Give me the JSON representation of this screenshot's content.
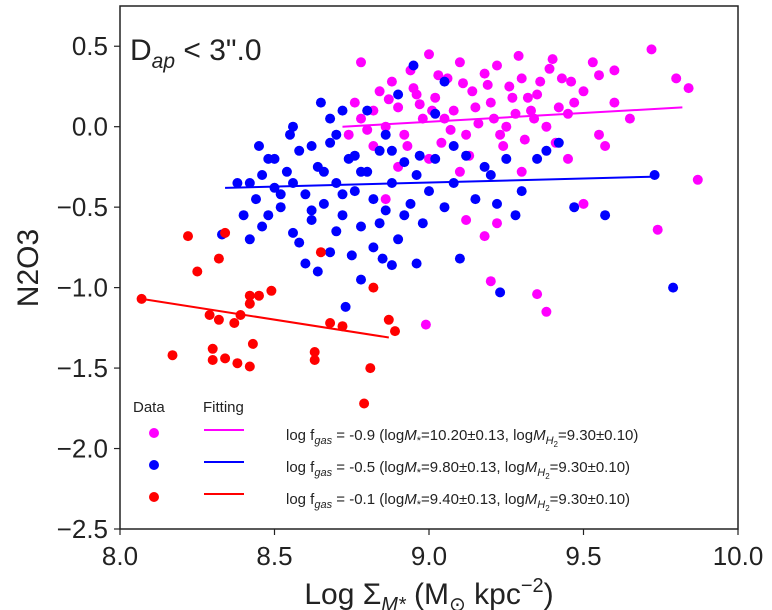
{
  "chart_data": {
    "type": "scatter",
    "annotation": {
      "label": "D",
      "sub": "ap",
      "suffix": " < 3\".0"
    },
    "xlabel": {
      "prefix": "Log Σ",
      "sub": "M*",
      "mid": " (M",
      "sun": "⊙",
      "unit": " kpc",
      "sup": "−2",
      "end": ")"
    },
    "ylabel": "N2O3",
    "xlim": [
      8.0,
      10.0
    ],
    "ylim": [
      -2.5,
      0.75
    ],
    "xticks": [
      8.0,
      8.5,
      9.0,
      9.5,
      10.0
    ],
    "xtick_labels": [
      "8.0",
      "8.5",
      "9.0",
      "9.5",
      "10.0"
    ],
    "yticks": [
      -2.5,
      -2.0,
      -1.5,
      -1.0,
      -0.5,
      0.0,
      0.5
    ],
    "ytick_labels": [
      "−2.5",
      "−2.0",
      "−1.5",
      "−1.0",
      "−0.5",
      "0.0",
      "0.5"
    ],
    "grid": false,
    "legend": {
      "position": "lower-left",
      "data_header": "Data",
      "fit_header": "Fitting",
      "prefix": "log f",
      "sub": "gas",
      "ms_text": "=",
      "mh_text": "="
    },
    "series": [
      {
        "name": "magenta",
        "color": "#ff00ff",
        "label": " = -0.9 (logM*=10.20±0.13, logMH2=9.30±0.10)",
        "fgas": " = -0.9 (log",
        "mstar": "10.20±0.13",
        "mh2": "9.30±0.10",
        "fit": {
          "x": [
            8.72,
            9.82
          ],
          "y": [
            0.0,
            0.12
          ]
        },
        "points": [
          [
            8.76,
            0.15
          ],
          [
            8.78,
            0.05
          ],
          [
            8.8,
            -0.02
          ],
          [
            8.82,
            0.1
          ],
          [
            8.84,
            0.22
          ],
          [
            8.86,
            0.0
          ],
          [
            8.88,
            0.28
          ],
          [
            8.9,
            0.12
          ],
          [
            8.92,
            -0.05
          ],
          [
            8.94,
            0.35
          ],
          [
            8.96,
            0.2
          ],
          [
            8.98,
            0.05
          ],
          [
            9.0,
            0.45
          ],
          [
            9.02,
            0.18
          ],
          [
            9.04,
            -0.1
          ],
          [
            9.06,
            0.3
          ],
          [
            9.08,
            0.1
          ],
          [
            9.1,
            0.4
          ],
          [
            9.12,
            -0.05
          ],
          [
            9.14,
            0.22
          ],
          [
            9.16,
            0.02
          ],
          [
            9.18,
            0.33
          ],
          [
            9.2,
            0.15
          ],
          [
            9.22,
            0.38
          ],
          [
            9.24,
            -0.12
          ],
          [
            9.26,
            0.25
          ],
          [
            9.28,
            0.08
          ],
          [
            9.3,
            0.3
          ],
          [
            9.32,
            0.18
          ],
          [
            9.34,
            0.05
          ],
          [
            9.36,
            0.28
          ],
          [
            9.38,
            0.0
          ],
          [
            9.4,
            0.42
          ],
          [
            9.42,
            0.12
          ],
          [
            9.46,
            0.28
          ],
          [
            9.5,
            0.22
          ],
          [
            9.55,
            0.32
          ],
          [
            9.6,
            0.15
          ],
          [
            9.65,
            0.05
          ],
          [
            9.72,
            0.48
          ],
          [
            9.8,
            0.3
          ],
          [
            9.84,
            0.24
          ],
          [
            9.87,
            -0.33
          ],
          [
            9.74,
            -0.64
          ],
          [
            9.5,
            -0.48
          ],
          [
            9.35,
            -1.04
          ],
          [
            9.38,
            -1.15
          ],
          [
            9.2,
            -0.96
          ],
          [
            9.22,
            -0.6
          ],
          [
            9.18,
            -0.68
          ],
          [
            9.12,
            -0.58
          ],
          [
            8.99,
            -1.23
          ],
          [
            8.86,
            -0.45
          ],
          [
            8.82,
            -0.12
          ],
          [
            8.78,
            0.4
          ],
          [
            9.3,
            -0.28
          ],
          [
            9.1,
            -0.28
          ],
          [
            9.0,
            -0.2
          ],
          [
            9.45,
            -0.2
          ],
          [
            8.9,
            -0.25
          ],
          [
            9.03,
            0.32
          ],
          [
            9.07,
            -0.02
          ],
          [
            8.97,
            0.14
          ],
          [
            9.15,
            0.12
          ],
          [
            9.25,
            0.0
          ],
          [
            9.35,
            0.2
          ],
          [
            9.27,
            0.18
          ],
          [
            9.45,
            0.08
          ],
          [
            9.55,
            -0.05
          ],
          [
            9.6,
            0.35
          ],
          [
            8.74,
            -0.05
          ],
          [
            8.87,
            0.17
          ],
          [
            9.19,
            0.26
          ],
          [
            9.33,
            0.1
          ],
          [
            9.43,
            0.3
          ],
          [
            9.21,
            0.05
          ],
          [
            9.11,
            0.27
          ],
          [
            9.05,
            0.05
          ],
          [
            8.95,
            0.24
          ],
          [
            9.13,
            -0.18
          ],
          [
            9.23,
            -0.05
          ],
          [
            9.39,
            0.36
          ],
          [
            9.29,
            0.44
          ],
          [
            9.53,
            0.4
          ],
          [
            9.47,
            0.15
          ],
          [
            9.57,
            -0.12
          ],
          [
            9.41,
            -0.1
          ],
          [
            9.31,
            -0.08
          ],
          [
            9.01,
            0.1
          ],
          [
            8.93,
            -0.12
          ]
        ]
      },
      {
        "name": "blue",
        "color": "#0000ff",
        "label": " = -0.5 (logM*=9.80±0.13, logMH2=9.30±0.10)",
        "fgas": " = -0.5 (log",
        "mstar": "9.80±0.13",
        "mh2": "9.30±0.10",
        "fit": {
          "x": [
            8.34,
            9.74
          ],
          "y": [
            -0.38,
            -0.31
          ]
        },
        "points": [
          [
            8.33,
            -0.67
          ],
          [
            8.4,
            -0.55
          ],
          [
            8.42,
            -0.35
          ],
          [
            8.44,
            -0.45
          ],
          [
            8.46,
            -0.62
          ],
          [
            8.48,
            -0.2
          ],
          [
            8.5,
            -0.38
          ],
          [
            8.52,
            -0.5
          ],
          [
            8.54,
            -0.28
          ],
          [
            8.56,
            -0.66
          ],
          [
            8.58,
            -0.15
          ],
          [
            8.6,
            -0.42
          ],
          [
            8.62,
            -0.58
          ],
          [
            8.64,
            -0.25
          ],
          [
            8.66,
            -0.48
          ],
          [
            8.68,
            -0.1
          ],
          [
            8.7,
            -0.35
          ],
          [
            8.72,
            -0.55
          ],
          [
            8.74,
            -0.2
          ],
          [
            8.76,
            -0.4
          ],
          [
            8.78,
            -0.62
          ],
          [
            8.8,
            -0.28
          ],
          [
            8.82,
            -0.45
          ],
          [
            8.84,
            -0.15
          ],
          [
            8.86,
            -0.52
          ],
          [
            8.88,
            -0.35
          ],
          [
            8.9,
            -0.7
          ],
          [
            8.92,
            -0.22
          ],
          [
            8.94,
            -0.48
          ],
          [
            8.96,
            -0.3
          ],
          [
            8.98,
            -0.6
          ],
          [
            9.0,
            -0.4
          ],
          [
            9.02,
            -0.2
          ],
          [
            9.05,
            -0.5
          ],
          [
            9.08,
            -0.35
          ],
          [
            9.1,
            -0.82
          ],
          [
            9.15,
            -0.45
          ],
          [
            9.2,
            -0.3
          ],
          [
            9.25,
            -0.2
          ],
          [
            9.3,
            -0.4
          ],
          [
            9.35,
            -0.2
          ],
          [
            9.42,
            -0.1
          ],
          [
            9.47,
            -0.5
          ],
          [
            8.65,
            0.15
          ],
          [
            8.72,
            0.1
          ],
          [
            8.68,
            0.05
          ],
          [
            8.62,
            -0.12
          ],
          [
            8.8,
            0.1
          ],
          [
            8.9,
            0.2
          ],
          [
            8.56,
            0.0
          ],
          [
            8.5,
            -0.2
          ],
          [
            8.45,
            -0.12
          ],
          [
            8.6,
            -0.85
          ],
          [
            8.68,
            -0.78
          ],
          [
            8.75,
            -0.8
          ],
          [
            8.85,
            -0.82
          ],
          [
            8.73,
            -1.12
          ],
          [
            8.78,
            -0.95
          ],
          [
            8.88,
            -0.86
          ],
          [
            8.96,
            -0.85
          ],
          [
            9.23,
            -1.03
          ],
          [
            9.73,
            -0.3
          ],
          [
            9.79,
            -1.0
          ],
          [
            9.57,
            -0.55
          ],
          [
            9.05,
            0.28
          ],
          [
            8.95,
            0.38
          ],
          [
            9.02,
            0.08
          ],
          [
            8.7,
            -0.05
          ],
          [
            8.86,
            -0.05
          ],
          [
            8.78,
            -0.28
          ],
          [
            8.84,
            -0.6
          ],
          [
            8.7,
            -0.65
          ],
          [
            8.58,
            -0.72
          ],
          [
            8.64,
            -0.9
          ],
          [
            8.52,
            -0.42
          ],
          [
            8.46,
            -0.3
          ],
          [
            8.38,
            -0.35
          ],
          [
            8.42,
            -0.7
          ],
          [
            8.55,
            -0.05
          ],
          [
            8.92,
            -0.55
          ],
          [
            8.97,
            -0.18
          ],
          [
            9.08,
            -0.12
          ],
          [
            9.18,
            -0.25
          ],
          [
            9.28,
            -0.55
          ],
          [
            9.38,
            -0.15
          ],
          [
            8.76,
            -0.18
          ],
          [
            8.66,
            -0.28
          ],
          [
            8.56,
            -0.35
          ],
          [
            8.72,
            -0.42
          ],
          [
            8.82,
            -0.75
          ],
          [
            8.88,
            -0.15
          ],
          [
            9.12,
            -0.18
          ],
          [
            9.22,
            -0.48
          ],
          [
            8.62,
            -0.52
          ],
          [
            8.48,
            -0.55
          ]
        ]
      },
      {
        "name": "red",
        "color": "#ff0000",
        "label": " = -0.1 (logM*=9.40±0.13, logMH2=9.30±0.10)",
        "fgas": " = -0.1 (log",
        "mstar": "9.40±0.13",
        "mh2": "9.30±0.10",
        "fit": {
          "x": [
            8.07,
            8.87
          ],
          "y": [
            -1.07,
            -1.31
          ]
        },
        "points": [
          [
            8.07,
            -1.07
          ],
          [
            8.17,
            -1.42
          ],
          [
            8.22,
            -0.68
          ],
          [
            8.25,
            -0.9
          ],
          [
            8.29,
            -1.17
          ],
          [
            8.3,
            -1.38
          ],
          [
            8.3,
            -1.45
          ],
          [
            8.32,
            -1.2
          ],
          [
            8.34,
            -1.44
          ],
          [
            8.34,
            -0.66
          ],
          [
            8.38,
            -1.47
          ],
          [
            8.39,
            -1.17
          ],
          [
            8.42,
            -1.49
          ],
          [
            8.42,
            -1.1
          ],
          [
            8.43,
            -1.35
          ],
          [
            8.45,
            -1.05
          ],
          [
            8.49,
            -1.02
          ],
          [
            8.63,
            -1.45
          ],
          [
            8.63,
            -1.4
          ],
          [
            8.65,
            -0.78
          ],
          [
            8.68,
            -1.22
          ],
          [
            8.72,
            -1.24
          ],
          [
            8.79,
            -1.72
          ],
          [
            8.81,
            -1.5
          ],
          [
            8.82,
            -1.0
          ],
          [
            8.87,
            -1.2
          ],
          [
            8.89,
            -1.27
          ],
          [
            8.42,
            -1.05
          ],
          [
            8.37,
            -1.22
          ],
          [
            8.32,
            -0.82
          ]
        ]
      }
    ]
  }
}
